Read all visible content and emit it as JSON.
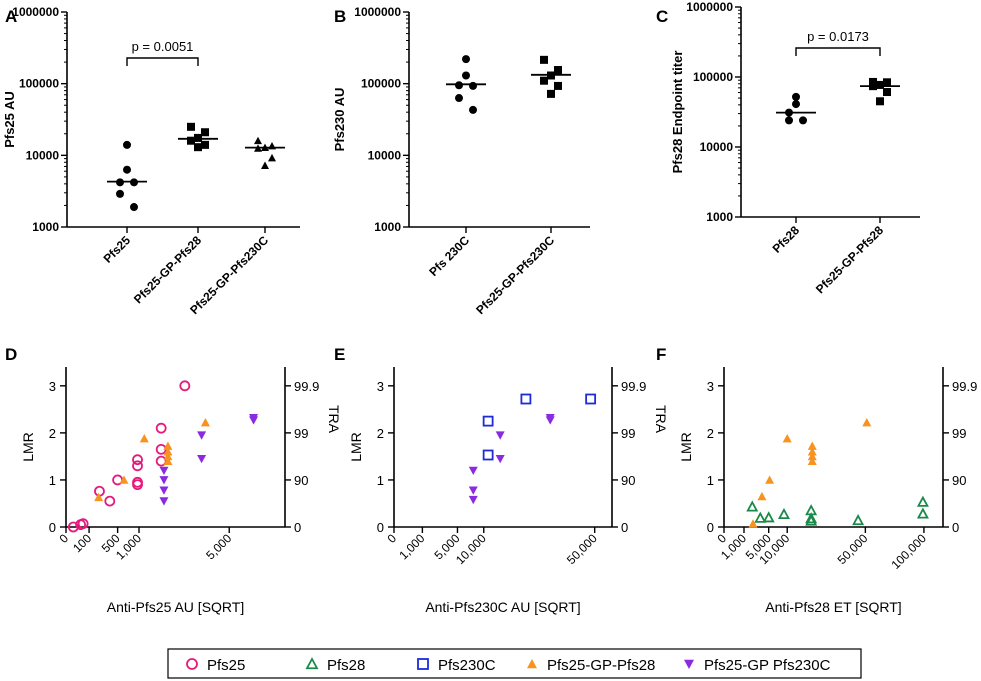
{
  "colors": {
    "black": "#000000",
    "pfs25": "#e6197d",
    "pfs28": "#1a8a4a",
    "pfs230c": "#1f2bd6",
    "gp_pfs28": "#f7931e",
    "gp_pfs230c": "#8a2be2"
  },
  "legend": {
    "items": [
      {
        "label": "Pfs25",
        "marker": "circle-open",
        "color": "#e6197d"
      },
      {
        "label": "Pfs28",
        "marker": "triangle-open",
        "color": "#1a8a4a"
      },
      {
        "label": "Pfs230C",
        "marker": "square-open",
        "color": "#1f2bd6"
      },
      {
        "label": "Pfs25-GP-Pfs28",
        "marker": "triangle-filled",
        "color": "#f7931e"
      },
      {
        "label": "Pfs25-GP Pfs230C",
        "marker": "triangle-down-filled",
        "color": "#8a2be2"
      }
    ]
  },
  "chart_data": [
    {
      "panel": "A",
      "type": "scatter",
      "yscale": "log",
      "ylabel": "Pfs25 AU",
      "ylim": [
        1000,
        1000000
      ],
      "yticks": [
        "1000",
        "10000",
        "100000",
        "1000000"
      ],
      "categories": [
        "Pfs25",
        "Pfs25-GP-Pfs28",
        "Pfs25-GP-Pfs230C"
      ],
      "series": [
        {
          "name": "Pfs25",
          "marker": "circle",
          "values": [
            14000,
            6300,
            4200,
            4200,
            2900,
            1900
          ],
          "median": 4300
        },
        {
          "name": "Pfs25-GP-Pfs28",
          "marker": "square",
          "values": [
            25000,
            21000,
            17500,
            16000,
            14000,
            13000
          ],
          "median": 17000
        },
        {
          "name": "Pfs25-GP-Pfs230C",
          "marker": "triangle",
          "values": [
            16000,
            13500,
            12800,
            12500,
            9200,
            7200
          ],
          "median": 12800
        }
      ],
      "annotation": {
        "text": "p = 0.0051",
        "from": 0,
        "to": 1
      }
    },
    {
      "panel": "B",
      "type": "scatter",
      "yscale": "log",
      "ylabel": "Pfs230 AU",
      "ylim": [
        1000,
        1000000
      ],
      "yticks": [
        "1000",
        "10000",
        "100000",
        "1000000"
      ],
      "categories": [
        "Pfs 230C",
        "Pfs25-GP-Pfs230C"
      ],
      "series": [
        {
          "name": "Pfs 230C",
          "marker": "circle",
          "values": [
            220000,
            130000,
            95000,
            93000,
            63000,
            43000
          ],
          "median": 98000
        },
        {
          "name": "Pfs25-GP-Pfs230C",
          "marker": "square",
          "values": [
            215000,
            155000,
            130000,
            110000,
            93000,
            72000
          ],
          "median": 133000
        }
      ]
    },
    {
      "panel": "C",
      "type": "scatter",
      "yscale": "log",
      "ylabel": "Pfs28 Endpoint titer",
      "ylim": [
        1000,
        1000000
      ],
      "yticks": [
        "1000",
        "10000",
        "100000",
        "1000000"
      ],
      "categories": [
        "Pfs28",
        "Pfs25-GP-Pfs28"
      ],
      "series": [
        {
          "name": "Pfs28",
          "marker": "circle",
          "values": [
            52000,
            41000,
            31000,
            24000,
            24000
          ],
          "median": 31000
        },
        {
          "name": "Pfs25-GP-Pfs28",
          "marker": "square",
          "values": [
            85000,
            84000,
            77000,
            74000,
            61000,
            45000
          ],
          "median": 74000
        }
      ],
      "annotation": {
        "text": "p = 0.0173",
        "from": 0,
        "to": 1
      }
    },
    {
      "panel": "D",
      "type": "scatter",
      "xscale": "sqrt",
      "xlabel": "Anti-Pfs25 AU [SQRT]",
      "ylabel": "LMR",
      "y2label": "TRA",
      "xlim": [
        0,
        9000
      ],
      "ylim": [
        0,
        3.4
      ],
      "xticks": [
        "0",
        "100",
        "500",
        "1,000",
        "5,000"
      ],
      "xtick_values": [
        0,
        100,
        500,
        1000,
        5000
      ],
      "yticks": [
        "0",
        "1",
        "2",
        "3"
      ],
      "y2ticks": [
        "0",
        "90",
        "99",
        "99.9"
      ],
      "series": [
        {
          "name": "Pfs25",
          "marker": "circle-open",
          "color": "#e6197d",
          "points": [
            [
              10,
              0
            ],
            [
              40,
              0.05
            ],
            [
              55,
              0.07
            ],
            [
              210,
              0.76
            ],
            [
              360,
              0.55
            ],
            [
              500,
              1.0
            ],
            [
              960,
              1.43
            ],
            [
              960,
              1.3
            ],
            [
              960,
              0.95
            ],
            [
              960,
              0.9
            ],
            [
              1700,
              2.1
            ],
            [
              1700,
              1.65
            ],
            [
              1700,
              1.4
            ],
            [
              2650,
              3.0
            ]
          ]
        },
        {
          "name": "Pfs25-GP-Pfs28",
          "marker": "triangle-up",
          "color": "#f7931e",
          "points": [
            [
              200,
              0.63
            ],
            [
              630,
              1.0
            ],
            [
              1150,
              1.88
            ],
            [
              1950,
              1.72
            ],
            [
              1950,
              1.6
            ],
            [
              1950,
              1.5
            ],
            [
              1950,
              1.4
            ],
            [
              3650,
              2.22
            ]
          ]
        },
        {
          "name": "Pfs25-GP Pfs230C",
          "marker": "triangle-down",
          "color": "#8a2be2",
          "points": [
            [
              1800,
              1.2
            ],
            [
              1800,
              1.0
            ],
            [
              1800,
              0.78
            ],
            [
              1800,
              0.55
            ],
            [
              3450,
              1.95
            ],
            [
              3450,
              1.45
            ],
            [
              6600,
              2.32
            ],
            [
              6600,
              2.27
            ]
          ]
        }
      ]
    },
    {
      "panel": "E",
      "type": "scatter",
      "xscale": "sqrt",
      "xlabel": "Anti-Pfs230C AU [SQRT]",
      "ylabel": "LMR",
      "y2label": "TRA",
      "xlim": [
        0,
        59000
      ],
      "ylim": [
        0,
        3.4
      ],
      "xticks": [
        "0",
        "1,000",
        "5,000",
        "10,000",
        "50,000"
      ],
      "xtick_values": [
        0,
        1000,
        5000,
        10000,
        50000
      ],
      "yticks": [
        "0",
        "1",
        "2",
        "3"
      ],
      "y2ticks": [
        "0",
        "90",
        "99",
        "99.9"
      ],
      "series": [
        {
          "name": "Pfs230C",
          "marker": "square-open",
          "color": "#1f2bd6",
          "points": [
            [
              11000,
              2.25
            ],
            [
              11000,
              1.53
            ],
            [
              21600,
              2.72
            ],
            [
              48000,
              2.72
            ]
          ]
        },
        {
          "name": "Pfs25-GP Pfs230C",
          "marker": "triangle-down",
          "color": "#8a2be2",
          "points": [
            [
              7800,
              1.2
            ],
            [
              7800,
              0.78
            ],
            [
              7800,
              0.58
            ],
            [
              14000,
              1.95
            ],
            [
              14000,
              1.45
            ],
            [
              30300,
              2.32
            ],
            [
              30300,
              2.27
            ]
          ]
        }
      ]
    },
    {
      "panel": "F",
      "type": "scatter",
      "xscale": "sqrt",
      "xlabel": "Anti-Pfs28 ET [SQRT]",
      "ylabel": "LMR",
      "y2label": "TRA",
      "xlim": [
        0,
        120000
      ],
      "ylim": [
        0,
        3.4
      ],
      "xticks": [
        "0",
        "1,000",
        "5,000",
        "10,000",
        "50,000",
        "100,000"
      ],
      "xtick_values": [
        0,
        1000,
        5000,
        10000,
        50000,
        100000
      ],
      "yticks": [
        "0",
        "1",
        "2",
        "3"
      ],
      "y2ticks": [
        "0",
        "90",
        "99",
        "99.9"
      ],
      "series": [
        {
          "name": "Pfs28",
          "marker": "triangle-open",
          "color": "#1a8a4a",
          "points": [
            [
              2000,
              0.43
            ],
            [
              3300,
              0.19
            ],
            [
              5000,
              0.2
            ],
            [
              9000,
              0.27
            ],
            [
              19000,
              0.35
            ],
            [
              19000,
              0.18
            ],
            [
              19000,
              0.13
            ],
            [
              45000,
              0.14
            ],
            [
              99000,
              0.53
            ],
            [
              99000,
              0.28
            ]
          ]
        },
        {
          "name": "Pfs25-GP-Pfs28",
          "marker": "triangle-up",
          "color": "#f7931e",
          "points": [
            [
              2100,
              0.07
            ],
            [
              3600,
              0.65
            ],
            [
              5200,
              1.0
            ],
            [
              10000,
              1.88
            ],
            [
              19500,
              1.72
            ],
            [
              19500,
              1.6
            ],
            [
              19500,
              1.5
            ],
            [
              19500,
              1.4
            ],
            [
              51000,
              2.22
            ]
          ]
        }
      ]
    }
  ]
}
